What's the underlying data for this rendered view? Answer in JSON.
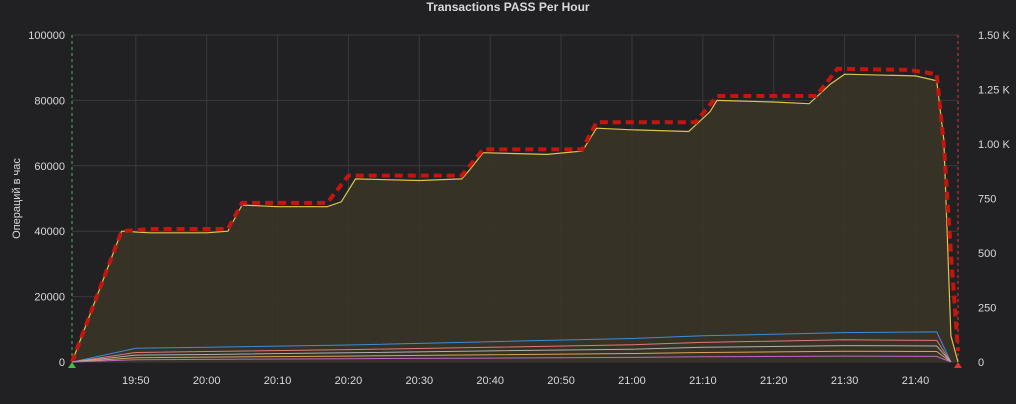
{
  "panel": {
    "title": "Transactions PASS Per Hour"
  },
  "chart_data": {
    "type": "area",
    "title": "Transactions PASS Per Hour",
    "ylabel": "Операций в час",
    "y2label": "",
    "x_range": [
      "19:41",
      "21:46"
    ],
    "x_ticks": [
      "19:50",
      "20:00",
      "20:10",
      "20:20",
      "20:30",
      "20:40",
      "20:50",
      "21:00",
      "21:10",
      "21:20",
      "21:30",
      "21:40"
    ],
    "ylim": [
      0,
      100000
    ],
    "y_ticks": [
      "0",
      "20000",
      "40000",
      "60000",
      "80000",
      "100000"
    ],
    "y2lim": [
      0,
      1500
    ],
    "y2_ticks": [
      "0",
      "250",
      "500",
      "750",
      "1.00 K",
      "1.25 K",
      "1.50 K"
    ],
    "grid": true,
    "colors": {
      "main_line": "#e0c44a",
      "main_fill": "#3a3527",
      "target": "#c4160e",
      "grid": "#3a3a3e",
      "axis_text": "#d8d9da",
      "start_marker": "#3fbf4a",
      "end_marker": "#e03434"
    },
    "series": [
      {
        "name": "",
        "axis": "left",
        "style": "area",
        "color": "#e0c44a",
        "points": [
          [
            "19:41",
            0
          ],
          [
            "19:48",
            40000
          ],
          [
            "19:52",
            39500
          ],
          [
            "20:00",
            39500
          ],
          [
            "20:03",
            40000
          ],
          [
            "20:05",
            48000
          ],
          [
            "20:10",
            47500
          ],
          [
            "20:17",
            47500
          ],
          [
            "20:19",
            49000
          ],
          [
            "20:21",
            56000
          ],
          [
            "20:30",
            55500
          ],
          [
            "20:36",
            56000
          ],
          [
            "20:37",
            58500
          ],
          [
            "20:39",
            64000
          ],
          [
            "20:48",
            63500
          ],
          [
            "20:53",
            64500
          ],
          [
            "20:55",
            71500
          ],
          [
            "21:00",
            71000
          ],
          [
            "21:08",
            70500
          ],
          [
            "21:11",
            76500
          ],
          [
            "21:12",
            80000
          ],
          [
            "21:20",
            79500
          ],
          [
            "21:25",
            79000
          ],
          [
            "21:28",
            85000
          ],
          [
            "21:30",
            88000
          ],
          [
            "21:40",
            87500
          ],
          [
            "21:43",
            86000
          ],
          [
            "21:44",
            68000
          ],
          [
            "21:45",
            8000
          ],
          [
            "21:46",
            0
          ]
        ]
      },
      {
        "name": "",
        "axis": "right",
        "style": "dashed",
        "color": "#c4160e",
        "points": [
          [
            "19:41",
            0
          ],
          [
            "19:48",
            600
          ],
          [
            "19:52",
            610
          ],
          [
            "20:03",
            610
          ],
          [
            "20:05",
            730
          ],
          [
            "20:17",
            730
          ],
          [
            "20:20",
            855
          ],
          [
            "20:36",
            855
          ],
          [
            "20:39",
            975
          ],
          [
            "20:53",
            975
          ],
          [
            "20:55",
            1100
          ],
          [
            "21:09",
            1100
          ],
          [
            "21:12",
            1220
          ],
          [
            "21:26",
            1220
          ],
          [
            "21:29",
            1345
          ],
          [
            "21:39",
            1340
          ],
          [
            "21:43",
            1320
          ],
          [
            "21:44",
            1000
          ],
          [
            "21:45",
            500
          ],
          [
            "21:46",
            50
          ]
        ]
      },
      {
        "name": "",
        "axis": "left",
        "style": "line",
        "color": "#3b8ee0",
        "points": [
          [
            "19:41",
            0
          ],
          [
            "19:50",
            4200
          ],
          [
            "20:00",
            4500
          ],
          [
            "20:20",
            5200
          ],
          [
            "20:40",
            6200
          ],
          [
            "21:00",
            7200
          ],
          [
            "21:10",
            8000
          ],
          [
            "21:30",
            9000
          ],
          [
            "21:43",
            9200
          ],
          [
            "21:45",
            0
          ]
        ]
      },
      {
        "name": "",
        "axis": "left",
        "style": "line",
        "color": "#e07a7a",
        "points": [
          [
            "19:41",
            0
          ],
          [
            "19:50",
            2900
          ],
          [
            "20:00",
            3200
          ],
          [
            "20:20",
            3800
          ],
          [
            "20:40",
            4500
          ],
          [
            "21:00",
            5300
          ],
          [
            "21:10",
            6000
          ],
          [
            "21:30",
            6800
          ],
          [
            "21:43",
            6600
          ],
          [
            "21:45",
            0
          ]
        ]
      },
      {
        "name": "",
        "axis": "left",
        "style": "line",
        "color": "#b0b0b0",
        "points": [
          [
            "19:41",
            0
          ],
          [
            "19:50",
            2100
          ],
          [
            "20:00",
            2300
          ],
          [
            "20:20",
            2800
          ],
          [
            "20:40",
            3400
          ],
          [
            "21:00",
            3900
          ],
          [
            "21:10",
            4500
          ],
          [
            "21:30",
            5000
          ],
          [
            "21:43",
            4900
          ],
          [
            "21:45",
            0
          ]
        ]
      },
      {
        "name": "",
        "axis": "left",
        "style": "line",
        "color": "#d9a55c",
        "points": [
          [
            "19:41",
            0
          ],
          [
            "19:50",
            1300
          ],
          [
            "20:00",
            1500
          ],
          [
            "20:20",
            1800
          ],
          [
            "20:40",
            2200
          ],
          [
            "21:00",
            2600
          ],
          [
            "21:10",
            2900
          ],
          [
            "21:30",
            3300
          ],
          [
            "21:43",
            3200
          ],
          [
            "21:45",
            0
          ]
        ]
      },
      {
        "name": "",
        "axis": "left",
        "style": "line",
        "color": "#c066c8",
        "points": [
          [
            "19:41",
            0
          ],
          [
            "19:50",
            700
          ],
          [
            "20:00",
            800
          ],
          [
            "20:20",
            1000
          ],
          [
            "20:40",
            1200
          ],
          [
            "21:00",
            1400
          ],
          [
            "21:10",
            1600
          ],
          [
            "21:30",
            1800
          ],
          [
            "21:43",
            1700
          ],
          [
            "21:45",
            0
          ]
        ]
      }
    ]
  }
}
